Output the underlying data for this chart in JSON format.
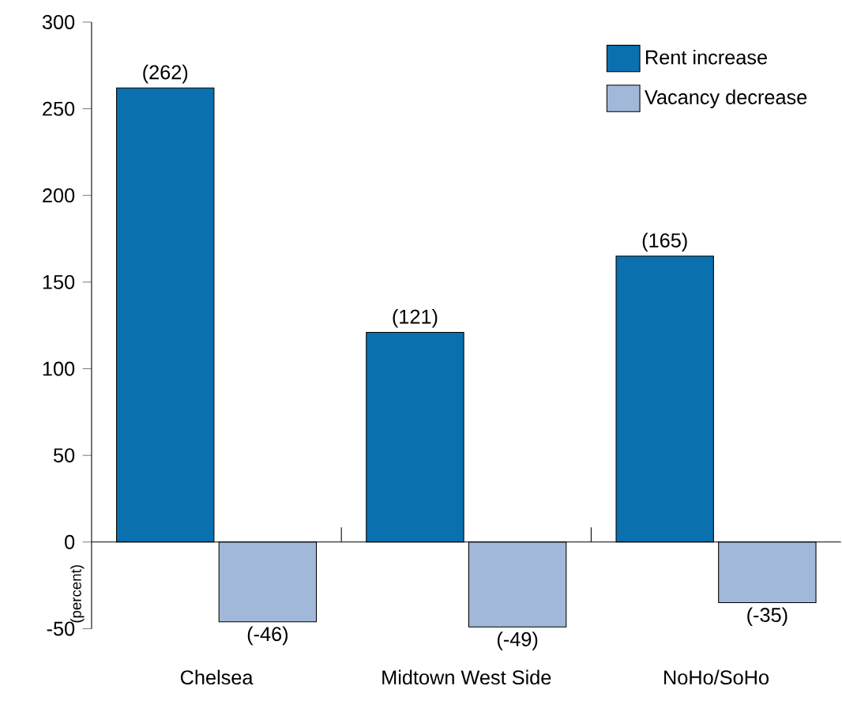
{
  "chart_data": {
    "type": "bar",
    "categories": [
      "Chelsea",
      "Midtown West Side",
      "NoHo/SoHo"
    ],
    "series": [
      {
        "name": "Rent increase",
        "color": "#0a70ae",
        "values": [
          262,
          121,
          165
        ],
        "value_labels": [
          "(262)",
          "(121)",
          "(165)"
        ]
      },
      {
        "name": "Vacancy decrease",
        "color": "#a2b8d9",
        "values": [
          -46,
          -49,
          -35
        ],
        "value_labels": [
          "(-46)",
          "(-49)",
          "(-35)"
        ]
      }
    ],
    "ylabel": "(percent)",
    "ylim": [
      -50,
      300
    ],
    "yticks": [
      -50,
      0,
      50,
      100,
      150,
      200,
      250,
      300
    ],
    "legend": "top right"
  }
}
